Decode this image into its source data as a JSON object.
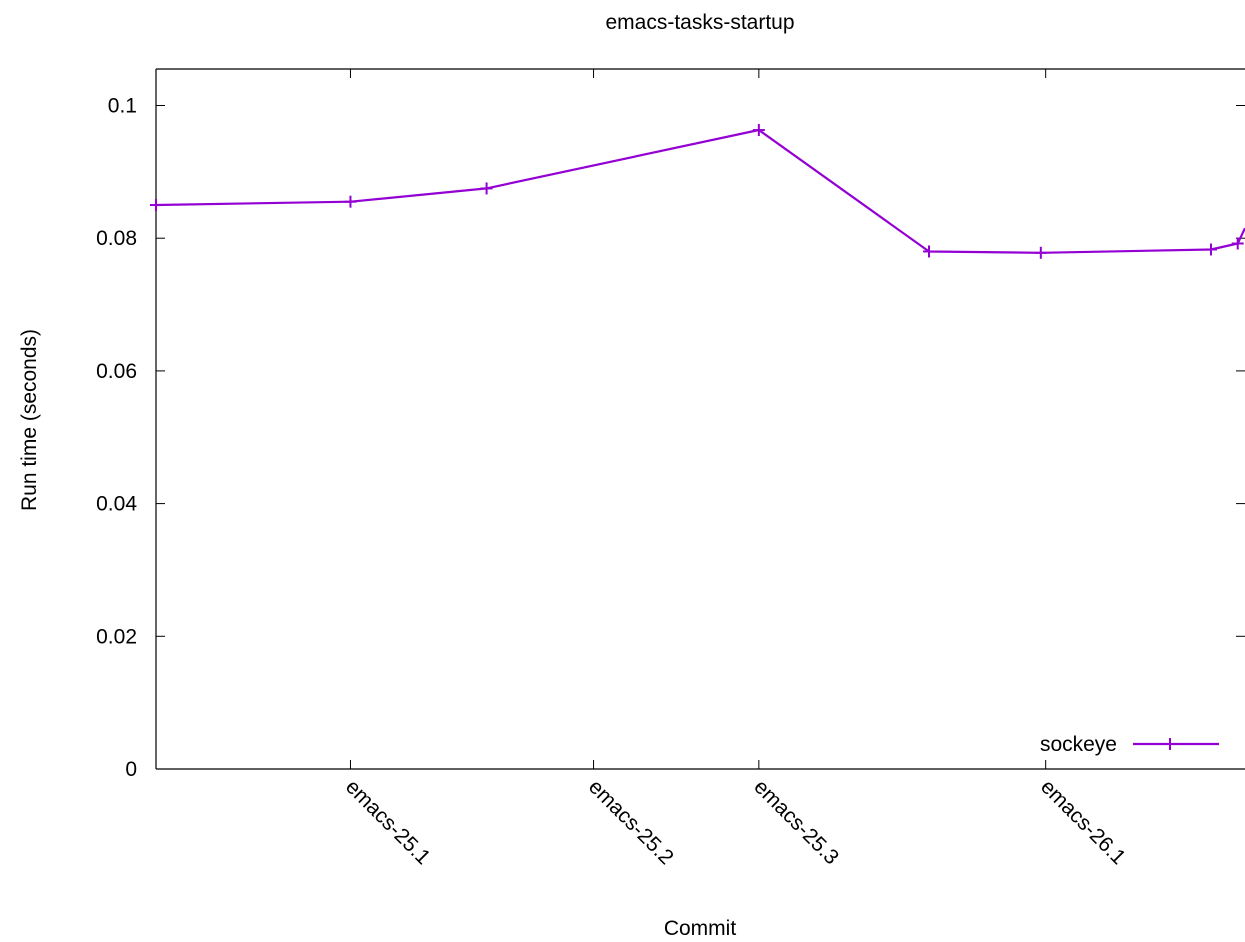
{
  "chart_data": {
    "type": "line",
    "title": "emacs-tasks-startup",
    "xlabel": "Commit",
    "ylabel": "Run time (seconds)",
    "ylim": [
      0,
      0.1055
    ],
    "y_ticks": [
      "0",
      "0.02",
      "0.04",
      "0.06",
      "0.08",
      "0.1"
    ],
    "y_tick_values": [
      0,
      0.02,
      0.04,
      0.06,
      0.08,
      0.1
    ],
    "x_ticks": [
      {
        "label": "emacs-25.1",
        "index": 4
      },
      {
        "label": "emacs-25.2",
        "index": 9
      },
      {
        "label": "emacs-25.3",
        "index": 12.4
      },
      {
        "label": "emacs-26.1",
        "index": 18.3
      }
    ],
    "xlim": [
      0,
      22.4
    ],
    "grid": false,
    "legend_position": "bottom-right",
    "series": [
      {
        "name": "sockeye",
        "color": "#9400d3",
        "x": [
          0,
          4,
          6.8,
          12.4,
          15.9,
          18.2,
          21.7,
          22.25,
          22.4
        ],
        "values": [
          0.085,
          0.0855,
          0.0875,
          0.0963,
          0.078,
          0.0778,
          0.0783,
          0.0792,
          0.0815
        ]
      }
    ]
  }
}
